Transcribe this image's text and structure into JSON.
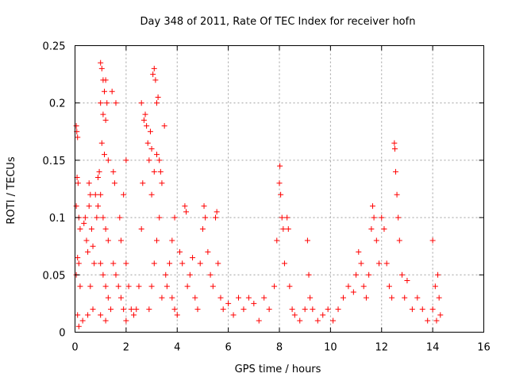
{
  "chart_data": {
    "type": "scatter",
    "title": "Day 348 of 2011, Rate Of TEC Index for receiver hofn",
    "xlabel": "GPS time / hours",
    "ylabel": "ROTI / TECUs",
    "xlim": [
      0,
      16
    ],
    "ylim": [
      0,
      0.25
    ],
    "xticks": [
      0,
      2,
      4,
      6,
      8,
      10,
      12,
      14,
      16
    ],
    "xtick_labels": [
      "0",
      "2",
      "4",
      "6",
      "8",
      "10",
      "12",
      "14",
      "16"
    ],
    "yticks": [
      0,
      0.05,
      0.1,
      0.15,
      0.2,
      0.25
    ],
    "ytick_labels": [
      "0",
      "0.05",
      "0.1",
      "0.15",
      "0.2",
      "0.25"
    ],
    "grid": true,
    "marker": "+",
    "marker_color": "#ff0000",
    "series": [
      {
        "name": "ROTI",
        "points": [
          [
            0.05,
            0.18
          ],
          [
            0.07,
            0.175
          ],
          [
            0.1,
            0.17
          ],
          [
            0.08,
            0.135
          ],
          [
            0.12,
            0.13
          ],
          [
            0.05,
            0.11
          ],
          [
            0.15,
            0.1
          ],
          [
            0.2,
            0.09
          ],
          [
            0.1,
            0.065
          ],
          [
            0.15,
            0.06
          ],
          [
            0.05,
            0.05
          ],
          [
            0.2,
            0.04
          ],
          [
            0.1,
            0.015
          ],
          [
            0.15,
            0.005
          ],
          [
            0.3,
            0.01
          ],
          [
            0.35,
            0.095
          ],
          [
            0.4,
            0.1
          ],
          [
            0.45,
            0.08
          ],
          [
            0.5,
            0.07
          ],
          [
            0.55,
            0.11
          ],
          [
            0.6,
            0.12
          ],
          [
            0.55,
            0.13
          ],
          [
            0.65,
            0.09
          ],
          [
            0.7,
            0.075
          ],
          [
            0.75,
            0.06
          ],
          [
            0.6,
            0.04
          ],
          [
            0.7,
            0.02
          ],
          [
            0.5,
            0.015
          ],
          [
            0.8,
            0.12
          ],
          [
            0.85,
            0.1
          ],
          [
            0.9,
            0.135
          ],
          [
            0.95,
            0.14
          ],
          [
            0.9,
            0.11
          ],
          [
            1.0,
            0.235
          ],
          [
            1.05,
            0.23
          ],
          [
            1.1,
            0.22
          ],
          [
            1.15,
            0.21
          ],
          [
            1.2,
            0.22
          ],
          [
            1.25,
            0.2
          ],
          [
            1.0,
            0.2
          ],
          [
            1.1,
            0.19
          ],
          [
            1.2,
            0.185
          ],
          [
            1.05,
            0.165
          ],
          [
            1.15,
            0.155
          ],
          [
            1.3,
            0.15
          ],
          [
            1.0,
            0.12
          ],
          [
            1.1,
            0.1
          ],
          [
            1.2,
            0.09
          ],
          [
            1.3,
            0.08
          ],
          [
            1.0,
            0.06
          ],
          [
            1.1,
            0.05
          ],
          [
            1.2,
            0.04
          ],
          [
            1.3,
            0.03
          ],
          [
            1.4,
            0.02
          ],
          [
            1.0,
            0.015
          ],
          [
            1.2,
            0.01
          ],
          [
            1.5,
            0.14
          ],
          [
            1.55,
            0.13
          ],
          [
            1.45,
            0.21
          ],
          [
            1.6,
            0.2
          ],
          [
            1.5,
            0.06
          ],
          [
            1.6,
            0.05
          ],
          [
            1.7,
            0.04
          ],
          [
            1.8,
            0.03
          ],
          [
            1.9,
            0.02
          ],
          [
            1.75,
            0.1
          ],
          [
            1.9,
            0.12
          ],
          [
            2.0,
            0.15
          ],
          [
            1.8,
            0.08
          ],
          [
            2.0,
            0.06
          ],
          [
            2.1,
            0.04
          ],
          [
            2.2,
            0.02
          ],
          [
            2.0,
            0.01
          ],
          [
            2.3,
            0.015
          ],
          [
            2.4,
            0.02
          ],
          [
            2.5,
            0.04
          ],
          [
            2.6,
            0.09
          ],
          [
            2.65,
            0.13
          ],
          [
            2.7,
            0.185
          ],
          [
            2.75,
            0.19
          ],
          [
            2.8,
            0.18
          ],
          [
            2.6,
            0.2
          ],
          [
            2.85,
            0.165
          ],
          [
            2.9,
            0.15
          ],
          [
            2.95,
            0.175
          ],
          [
            3.0,
            0.16
          ],
          [
            3.05,
            0.225
          ],
          [
            3.1,
            0.23
          ],
          [
            3.15,
            0.22
          ],
          [
            3.2,
            0.2
          ],
          [
            3.25,
            0.205
          ],
          [
            3.0,
            0.12
          ],
          [
            3.1,
            0.14
          ],
          [
            3.2,
            0.155
          ],
          [
            3.3,
            0.15
          ],
          [
            3.35,
            0.14
          ],
          [
            3.4,
            0.13
          ],
          [
            3.3,
            0.1
          ],
          [
            3.2,
            0.08
          ],
          [
            3.1,
            0.06
          ],
          [
            3.0,
            0.04
          ],
          [
            2.9,
            0.02
          ],
          [
            3.4,
            0.03
          ],
          [
            3.5,
            0.18
          ],
          [
            3.55,
            0.05
          ],
          [
            3.6,
            0.04
          ],
          [
            3.7,
            0.06
          ],
          [
            3.8,
            0.03
          ],
          [
            3.9,
            0.02
          ],
          [
            4.0,
            0.015
          ],
          [
            3.8,
            0.08
          ],
          [
            3.9,
            0.1
          ],
          [
            4.1,
            0.07
          ],
          [
            4.2,
            0.06
          ],
          [
            4.3,
            0.11
          ],
          [
            4.35,
            0.105
          ],
          [
            4.4,
            0.04
          ],
          [
            4.5,
            0.05
          ],
          [
            4.6,
            0.065
          ],
          [
            4.7,
            0.03
          ],
          [
            4.8,
            0.02
          ],
          [
            4.9,
            0.06
          ],
          [
            5.0,
            0.09
          ],
          [
            5.05,
            0.11
          ],
          [
            5.1,
            0.1
          ],
          [
            5.2,
            0.07
          ],
          [
            5.3,
            0.05
          ],
          [
            5.4,
            0.04
          ],
          [
            5.5,
            0.1
          ],
          [
            5.55,
            0.105
          ],
          [
            5.6,
            0.06
          ],
          [
            5.7,
            0.03
          ],
          [
            5.8,
            0.02
          ],
          [
            6.0,
            0.025
          ],
          [
            6.2,
            0.015
          ],
          [
            6.4,
            0.03
          ],
          [
            6.6,
            0.02
          ],
          [
            6.8,
            0.03
          ],
          [
            7.0,
            0.025
          ],
          [
            7.2,
            0.01
          ],
          [
            7.4,
            0.03
          ],
          [
            7.6,
            0.02
          ],
          [
            7.8,
            0.04
          ],
          [
            7.9,
            0.08
          ],
          [
            8.0,
            0.13
          ],
          [
            8.02,
            0.145
          ],
          [
            8.05,
            0.12
          ],
          [
            8.1,
            0.1
          ],
          [
            8.15,
            0.09
          ],
          [
            8.2,
            0.06
          ],
          [
            8.3,
            0.1
          ],
          [
            8.35,
            0.09
          ],
          [
            8.4,
            0.04
          ],
          [
            8.5,
            0.02
          ],
          [
            8.6,
            0.015
          ],
          [
            8.8,
            0.01
          ],
          [
            9.0,
            0.02
          ],
          [
            9.1,
            0.08
          ],
          [
            9.15,
            0.05
          ],
          [
            9.2,
            0.03
          ],
          [
            9.3,
            0.02
          ],
          [
            9.5,
            0.01
          ],
          [
            9.7,
            0.015
          ],
          [
            9.9,
            0.02
          ],
          [
            10.1,
            0.01
          ],
          [
            10.3,
            0.02
          ],
          [
            10.5,
            0.03
          ],
          [
            10.7,
            0.04
          ],
          [
            10.9,
            0.035
          ],
          [
            11.0,
            0.05
          ],
          [
            11.1,
            0.07
          ],
          [
            11.2,
            0.06
          ],
          [
            11.3,
            0.04
          ],
          [
            11.4,
            0.03
          ],
          [
            11.5,
            0.05
          ],
          [
            11.6,
            0.09
          ],
          [
            11.65,
            0.11
          ],
          [
            11.7,
            0.1
          ],
          [
            11.8,
            0.08
          ],
          [
            11.9,
            0.06
          ],
          [
            12.0,
            0.1
          ],
          [
            12.1,
            0.09
          ],
          [
            12.2,
            0.06
          ],
          [
            12.3,
            0.04
          ],
          [
            12.4,
            0.03
          ],
          [
            12.5,
            0.165
          ],
          [
            12.52,
            0.16
          ],
          [
            12.55,
            0.14
          ],
          [
            12.6,
            0.12
          ],
          [
            12.65,
            0.1
          ],
          [
            12.7,
            0.08
          ],
          [
            12.8,
            0.05
          ],
          [
            12.9,
            0.03
          ],
          [
            13.0,
            0.045
          ],
          [
            13.2,
            0.02
          ],
          [
            13.4,
            0.03
          ],
          [
            13.6,
            0.02
          ],
          [
            13.8,
            0.01
          ],
          [
            14.0,
            0.02
          ],
          [
            14.1,
            0.04
          ],
          [
            14.2,
            0.05
          ],
          [
            14.25,
            0.03
          ],
          [
            14.0,
            0.08
          ],
          [
            14.15,
            0.01
          ],
          [
            14.3,
            0.015
          ]
        ]
      }
    ]
  }
}
